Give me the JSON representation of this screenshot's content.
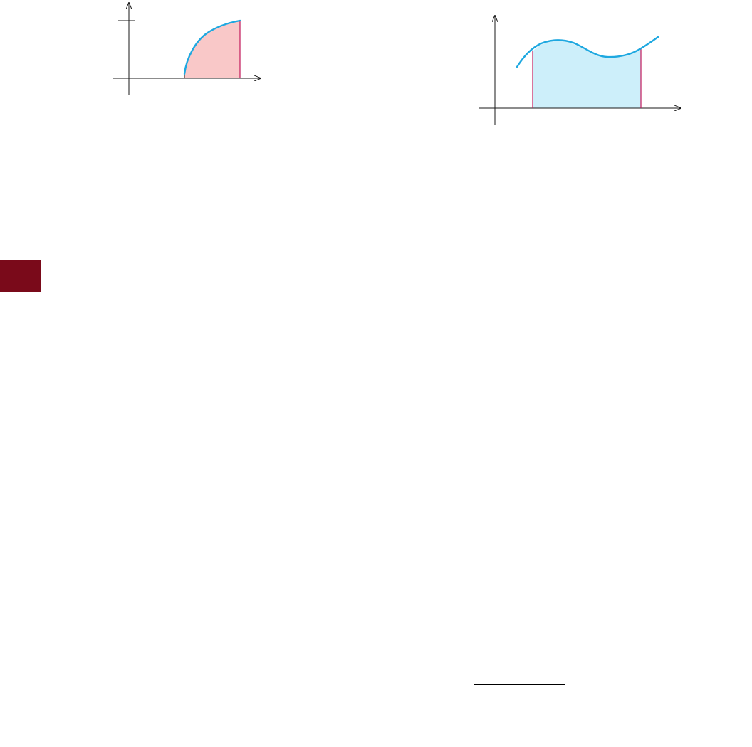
{
  "colors": {
    "curve": "#1ea8e0",
    "region_left": "#f9c8c8",
    "region_right": "#cdeffa",
    "boundary": "#c2185b",
    "axis": "#1a1a1a",
    "section_accent": "#7a0a1a",
    "rule": "#c8c8c8"
  },
  "figures": [
    {
      "id": "left-graph",
      "shape": "concave-increasing",
      "shaded": true,
      "tick_on_y_axis": true
    },
    {
      "id": "right-graph",
      "shape": "wavy",
      "shaded": true,
      "tick_on_y_axis": false
    }
  ]
}
